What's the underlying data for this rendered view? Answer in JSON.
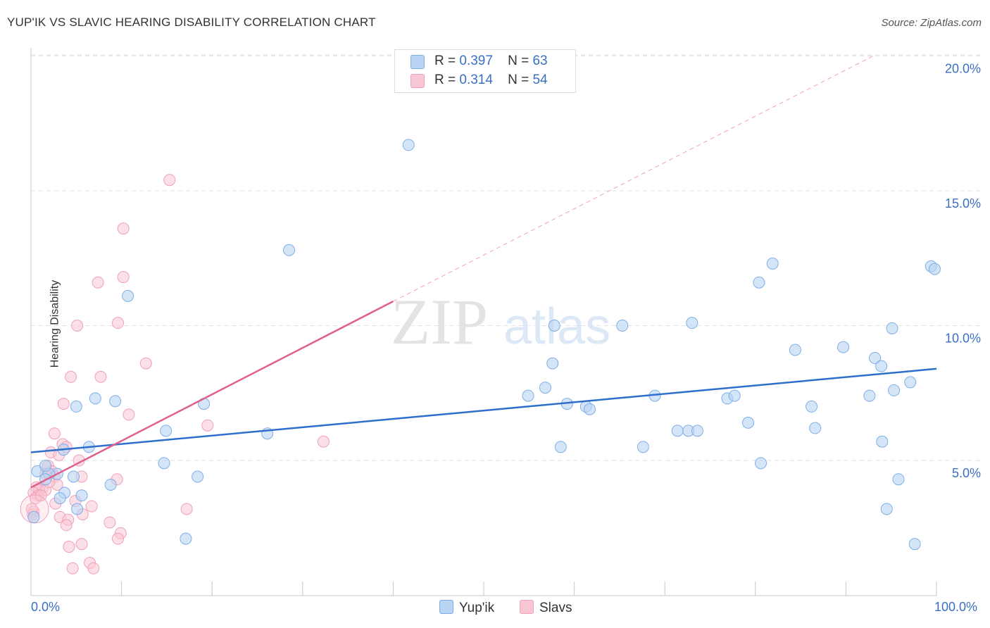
{
  "title": "YUP'IK VS SLAVIC HEARING DISABILITY CORRELATION CHART",
  "source": "Source: ZipAtlas.com",
  "watermark": {
    "zip": "ZIP",
    "atlas": "atlas"
  },
  "legend": {
    "rows": [
      {
        "r_label": "R =",
        "r_value": "0.397",
        "n_label": "N =",
        "n_value": "63"
      },
      {
        "r_label": "R =",
        "r_value": "0.314",
        "n_label": "N =",
        "n_value": "54"
      }
    ]
  },
  "bottom_legend": {
    "series1": "Yup'ik",
    "series2": "Slavs"
  },
  "colors": {
    "blue_fill": "#b9d3f3",
    "blue_stroke": "#7eaee6",
    "blue_line": "#2f6fcc",
    "pink_fill": "#f9c6d4",
    "pink_stroke": "#f0a0b8",
    "pink_line": "#e0608c",
    "axis_label": "#3a6fc4"
  },
  "chart_data": {
    "type": "scatter",
    "title": "YUP'IK VS SLAVIC HEARING DISABILITY CORRELATION CHART",
    "xlabel": "",
    "ylabel": "Hearing Disability",
    "xlim": [
      0,
      100
    ],
    "ylim": [
      0.5,
      20.5
    ],
    "x_tick_labels": [
      "0.0%",
      "100.0%"
    ],
    "y_ticks": [
      5,
      10,
      15,
      20
    ],
    "y_tick_labels": [
      "5.0%",
      "10.0%",
      "15.0%",
      "20.0%"
    ],
    "series": [
      {
        "name": "Yup'ik",
        "color": "#7eaee6",
        "trend": {
          "x": [
            0,
            100
          ],
          "y": [
            5.3,
            8.4
          ],
          "dashed_extension": false
        },
        "points": [
          [
            41.7,
            16.7
          ],
          [
            28.5,
            12.8
          ],
          [
            10.7,
            11.1
          ],
          [
            5.0,
            7.0
          ],
          [
            7.1,
            7.3
          ],
          [
            9.3,
            7.2
          ],
          [
            3.6,
            5.4
          ],
          [
            6.4,
            5.5
          ],
          [
            2.9,
            4.5
          ],
          [
            0.7,
            4.6
          ],
          [
            2.0,
            4.5
          ],
          [
            1.6,
            4.8
          ],
          [
            3.7,
            3.8
          ],
          [
            5.6,
            3.7
          ],
          [
            4.7,
            4.4
          ],
          [
            3.2,
            3.6
          ],
          [
            8.8,
            4.1
          ],
          [
            1.6,
            4.3
          ],
          [
            5.1,
            3.2
          ],
          [
            0.3,
            2.9
          ],
          [
            14.9,
            6.1
          ],
          [
            18.4,
            4.4
          ],
          [
            17.1,
            2.1
          ],
          [
            14.7,
            4.9
          ],
          [
            19.1,
            7.1
          ],
          [
            26.1,
            6.0
          ],
          [
            54.9,
            7.4
          ],
          [
            57.6,
            8.6
          ],
          [
            59.2,
            7.1
          ],
          [
            56.8,
            7.7
          ],
          [
            61.3,
            7.0
          ],
          [
            58.5,
            5.5
          ],
          [
            65.3,
            10.0
          ],
          [
            73.0,
            10.1
          ],
          [
            68.9,
            7.4
          ],
          [
            67.6,
            5.5
          ],
          [
            71.4,
            6.1
          ],
          [
            72.6,
            6.1
          ],
          [
            73.6,
            6.1
          ],
          [
            76.9,
            7.3
          ],
          [
            77.7,
            7.4
          ],
          [
            79.2,
            6.4
          ],
          [
            80.6,
            4.9
          ],
          [
            81.9,
            12.3
          ],
          [
            80.4,
            11.6
          ],
          [
            84.4,
            9.1
          ],
          [
            86.2,
            7.0
          ],
          [
            86.6,
            6.2
          ],
          [
            89.7,
            9.2
          ],
          [
            92.6,
            7.4
          ],
          [
            93.2,
            8.8
          ],
          [
            93.9,
            8.5
          ],
          [
            95.1,
            9.9
          ],
          [
            94.0,
            5.7
          ],
          [
            95.3,
            7.6
          ],
          [
            97.1,
            7.9
          ],
          [
            95.8,
            4.3
          ],
          [
            94.5,
            3.2
          ],
          [
            97.6,
            1.9
          ],
          [
            99.4,
            12.2
          ],
          [
            99.8,
            12.1
          ],
          [
            57.8,
            10.0
          ],
          [
            61.7,
            6.9
          ]
        ]
      },
      {
        "name": "Slavs",
        "color": "#f0a0b8",
        "trend": {
          "x": [
            0,
            40
          ],
          "y": [
            4.0,
            10.9
          ],
          "dashed_extension": true,
          "dashed_to": [
            93,
            20.0
          ]
        },
        "points": [
          [
            15.3,
            15.4
          ],
          [
            10.2,
            13.6
          ],
          [
            10.2,
            11.8
          ],
          [
            7.4,
            11.6
          ],
          [
            9.6,
            10.1
          ],
          [
            5.1,
            10.0
          ],
          [
            12.7,
            8.6
          ],
          [
            4.4,
            8.1
          ],
          [
            7.7,
            8.1
          ],
          [
            3.6,
            7.1
          ],
          [
            10.8,
            6.7
          ],
          [
            19.5,
            6.3
          ],
          [
            2.6,
            6.0
          ],
          [
            32.3,
            5.7
          ],
          [
            3.5,
            5.6
          ],
          [
            3.9,
            5.5
          ],
          [
            2.2,
            5.3
          ],
          [
            3.1,
            5.2
          ],
          [
            1.9,
            4.8
          ],
          [
            5.3,
            5.0
          ],
          [
            2.3,
            4.6
          ],
          [
            2.6,
            4.4
          ],
          [
            1.6,
            4.5
          ],
          [
            9.5,
            4.3
          ],
          [
            5.6,
            4.4
          ],
          [
            2.9,
            4.1
          ],
          [
            1.3,
            4.0
          ],
          [
            0.6,
            4.0
          ],
          [
            0.9,
            3.9
          ],
          [
            0.3,
            3.8
          ],
          [
            1.6,
            3.9
          ],
          [
            0.8,
            3.7
          ],
          [
            2.7,
            3.4
          ],
          [
            4.9,
            3.5
          ],
          [
            6.7,
            3.3
          ],
          [
            5.7,
            3.0
          ],
          [
            3.2,
            2.9
          ],
          [
            4.1,
            2.8
          ],
          [
            17.2,
            3.2
          ],
          [
            0.3,
            3.1
          ],
          [
            3.9,
            2.6
          ],
          [
            8.7,
            2.7
          ],
          [
            9.9,
            2.3
          ],
          [
            9.6,
            2.1
          ],
          [
            5.6,
            1.9
          ],
          [
            4.2,
            1.8
          ],
          [
            6.5,
            1.2
          ],
          [
            4.6,
            1.0
          ],
          [
            6.9,
            1.0
          ],
          [
            0.5,
            3.6
          ],
          [
            1.1,
            3.7
          ],
          [
            2.0,
            4.2
          ],
          [
            0.2,
            3.0
          ],
          [
            0.1,
            3.2
          ]
        ]
      }
    ]
  }
}
